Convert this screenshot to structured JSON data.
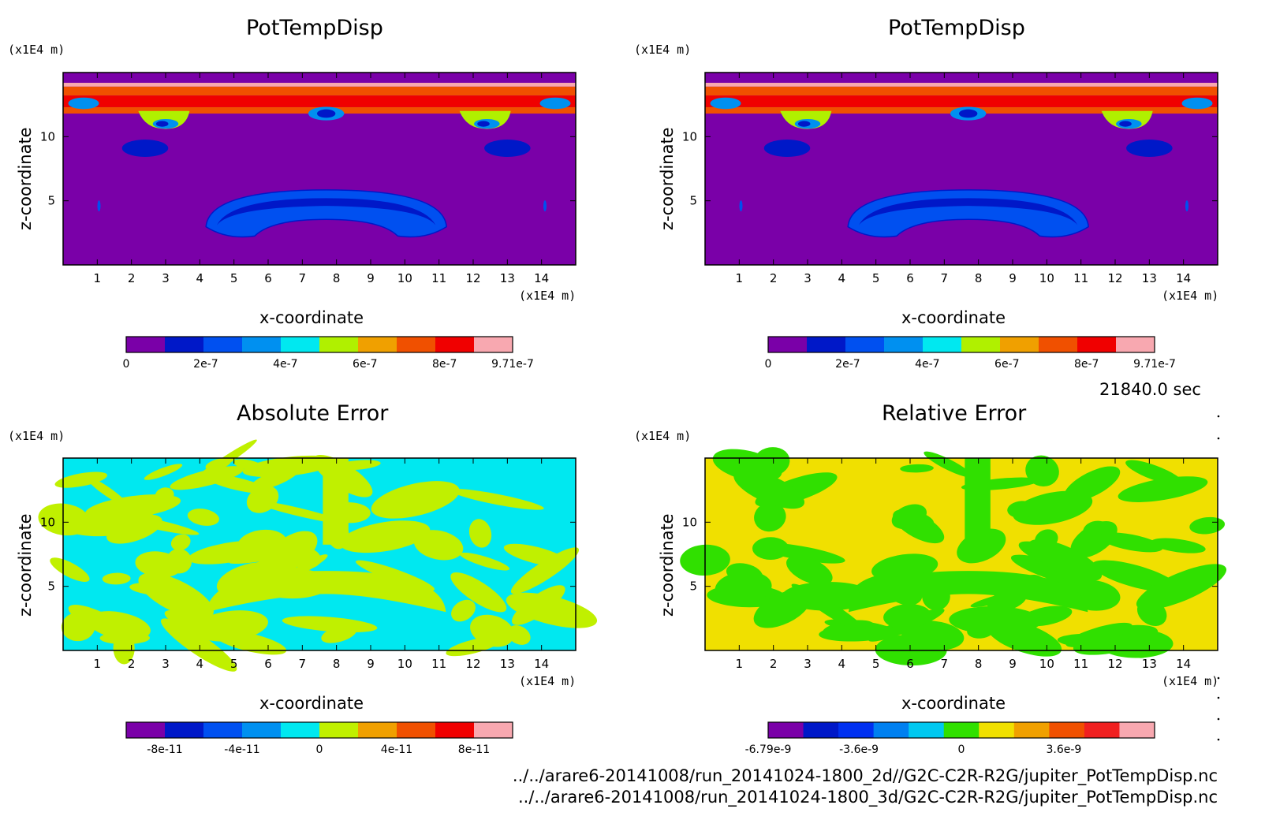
{
  "chart_data": [
    {
      "type": "heatmap",
      "title": "PotTempDisp",
      "xlabel": "x-coordinate",
      "ylabel": "z-coordinate",
      "xunit": "(x1E4 m)",
      "yunit": "(x1E4 m)",
      "xlim": [
        0,
        15
      ],
      "ylim": [
        0,
        15
      ],
      "xticks": [
        "1",
        "2",
        "3",
        "4",
        "5",
        "6",
        "7",
        "8",
        "9",
        "10",
        "11",
        "12",
        "13",
        "14"
      ],
      "yticks": [
        "5",
        "10"
      ],
      "colorbar": {
        "colors": [
          "#7a00a8",
          "#0018c8",
          "#0050f0",
          "#0090f0",
          "#00e8f0",
          "#b0f000",
          "#f0a000",
          "#f05000",
          "#f00000",
          "#f8a8b0"
        ],
        "tick_labels": [
          "0",
          "2e-7",
          "4e-7",
          "6e-7",
          "8e-7",
          "9.71e-7"
        ],
        "tick_values": [
          0,
          2e-07,
          4e-07,
          6e-07,
          8e-07,
          9.71e-07
        ],
        "min": 0,
        "max": 9.71e-07
      }
    },
    {
      "type": "heatmap",
      "title": "PotTempDisp",
      "xlabel": "x-coordinate",
      "ylabel": "z-coordinate",
      "xunit": "(x1E4 m)",
      "yunit": "(x1E4 m)",
      "xlim": [
        0,
        15
      ],
      "ylim": [
        0,
        15
      ],
      "xticks": [
        "1",
        "2",
        "3",
        "4",
        "5",
        "6",
        "7",
        "8",
        "9",
        "10",
        "11",
        "12",
        "13",
        "14"
      ],
      "yticks": [
        "5",
        "10"
      ],
      "colorbar": {
        "colors": [
          "#7a00a8",
          "#0018c8",
          "#0050f0",
          "#0090f0",
          "#00e8f0",
          "#b0f000",
          "#f0a000",
          "#f05000",
          "#f00000",
          "#f8a8b0"
        ],
        "tick_labels": [
          "0",
          "2e-7",
          "4e-7",
          "6e-7",
          "8e-7",
          "9.71e-7"
        ],
        "tick_values": [
          0,
          2e-07,
          4e-07,
          6e-07,
          8e-07,
          9.71e-07
        ],
        "min": 0,
        "max": 9.71e-07
      }
    },
    {
      "type": "heatmap",
      "title": "Absolute Error",
      "xlabel": "x-coordinate",
      "ylabel": "z-coordinate",
      "xunit": "(x1E4 m)",
      "yunit": "(x1E4 m)",
      "xlim": [
        0,
        15
      ],
      "ylim": [
        0,
        15
      ],
      "xticks": [
        "1",
        "2",
        "3",
        "4",
        "5",
        "6",
        "7",
        "8",
        "9",
        "10",
        "11",
        "12",
        "13",
        "14"
      ],
      "yticks": [
        "5",
        "10"
      ],
      "colorbar": {
        "colors": [
          "#7a00a8",
          "#0018c8",
          "#0050f0",
          "#0090f0",
          "#00e8f0",
          "#c0f000",
          "#f0a000",
          "#f05000",
          "#f00000",
          "#f8a8b0"
        ],
        "tick_labels": [
          "-8e-11",
          "-4e-11",
          "0",
          "4e-11",
          "8e-11"
        ],
        "tick_values": [
          -8e-11,
          -4e-11,
          0,
          4e-11,
          8e-11
        ],
        "min": -1e-10,
        "max": 1e-10
      }
    },
    {
      "type": "heatmap",
      "title": "Relative Error",
      "xlabel": "x-coordinate",
      "ylabel": "z-coordinate",
      "xunit": "(x1E4 m)",
      "yunit": "(x1E4 m)",
      "xlim": [
        0,
        15
      ],
      "ylim": [
        0,
        15
      ],
      "xticks": [
        "1",
        "2",
        "3",
        "4",
        "5",
        "6",
        "7",
        "8",
        "9",
        "10",
        "11",
        "12",
        "13",
        "14"
      ],
      "yticks": [
        "5",
        "10"
      ],
      "colorbar": {
        "colors": [
          "#7a00a8",
          "#0018c8",
          "#0030f0",
          "#0080f0",
          "#00c8f0",
          "#30e000",
          "#f0e000",
          "#f0a000",
          "#f05000",
          "#f02020",
          "#f8a8b0"
        ],
        "tick_labels": [
          "-6.79e-9",
          "-3.6e-9",
          "0",
          "3.6e-9"
        ],
        "tick_values": [
          -6.79e-09,
          -3.6e-09,
          0,
          3.6e-09
        ],
        "min": -6.79e-09,
        "max": 6.79e-09
      }
    }
  ],
  "info": {
    "time": "21840.0 sec",
    "file_2d": "../../arare6-20141008/run_20141024-1800_2d//G2C-C2R-R2G/jupiter_PotTempDisp.nc",
    "file_3d": "../../arare6-20141008/run_20141024-1800_3d/G2C-C2R-R2G/jupiter_PotTempDisp.nc"
  }
}
